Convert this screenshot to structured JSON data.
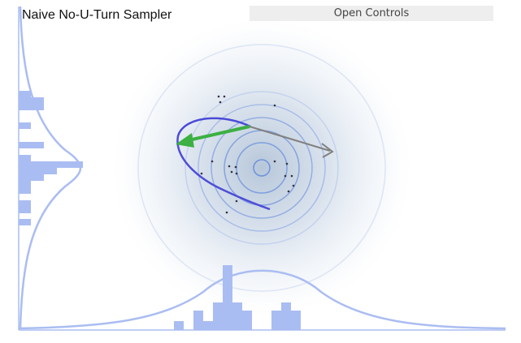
{
  "app": {
    "title": "Naive No-U-Turn Sampler",
    "controls_button_label": "Open Controls"
  },
  "colors": {
    "histogram": "#aabdf2",
    "marginal_curve": "#aabdf2",
    "contour": "#7f9fdf",
    "trajectory": "#4d4dd8",
    "momentum_arrow": "#3cb043",
    "gradient_arrow": "#808080",
    "sample_point": "#333344",
    "density_center": "#b8c8dc"
  },
  "icons": {
    "momentum_arrow": "green-arrow-icon",
    "gradient_arrow": "gray-arrow-icon"
  }
}
